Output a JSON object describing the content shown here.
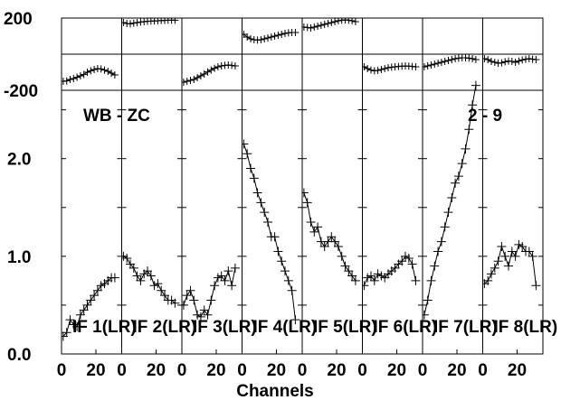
{
  "chart_data": {
    "type": "line",
    "xlabel": "Channels",
    "annotations": {
      "left": "WB - ZC",
      "right": "2 - 9"
    },
    "x_ticks": [
      "0",
      "20"
    ],
    "phase_axis": {
      "ylim": [
        -200,
        200
      ],
      "tick_labels": [
        "200",
        "-200"
      ]
    },
    "amp_axis": {
      "ylim": [
        0.0,
        2.7
      ],
      "tick_labels": [
        "2.0",
        "1.0",
        "0.0"
      ]
    },
    "x": [
      1,
      3,
      5,
      7,
      9,
      11,
      13,
      15,
      17,
      19,
      21,
      23,
      25,
      27,
      29,
      31
    ],
    "panels": [
      {
        "label": "IF 1(LR)",
        "phase": [
          -150,
          -148,
          -140,
          -135,
          -128,
          -120,
          -112,
          -100,
          -92,
          -85,
          -80,
          -82,
          -88,
          -95,
          -105,
          -115
        ],
        "amp": [
          0.18,
          0.22,
          0.35,
          0.3,
          0.28,
          0.4,
          0.45,
          0.5,
          0.55,
          0.6,
          0.65,
          0.7,
          0.72,
          0.75,
          0.78,
          0.78
        ]
      },
      {
        "label": "IF 2(LR)",
        "phase": [
          175,
          170,
          168,
          172,
          175,
          178,
          180,
          182,
          183,
          184,
          185,
          186,
          187,
          188,
          188,
          188
        ],
        "amp": [
          1.0,
          0.98,
          0.92,
          0.88,
          0.8,
          0.75,
          0.82,
          0.85,
          0.8,
          0.7,
          0.72,
          0.65,
          0.6,
          0.55,
          0.55,
          0.52
        ]
      },
      {
        "label": "IF 3(LR)",
        "phase": [
          -155,
          -150,
          -145,
          -140,
          -130,
          -120,
          -110,
          -98,
          -88,
          -78,
          -70,
          -65,
          -62,
          -60,
          -62,
          -65
        ],
        "amp": [
          0.5,
          0.6,
          0.65,
          0.55,
          0.4,
          0.38,
          0.45,
          0.4,
          0.55,
          0.7,
          0.78,
          0.8,
          0.75,
          0.85,
          0.7,
          0.88
        ]
      },
      {
        "label": "IF 4(LR)",
        "phase": [
          110,
          95,
          85,
          80,
          78,
          80,
          85,
          90,
          95,
          100,
          105,
          110,
          115,
          118,
          120,
          120
        ],
        "amp": [
          2.15,
          2.05,
          1.9,
          1.8,
          1.65,
          1.55,
          1.45,
          1.35,
          1.2,
          1.2,
          1.05,
          0.95,
          0.85,
          0.75,
          0.65,
          0.35
        ]
      },
      {
        "label": "IF 5(LR)",
        "phase": [
          150,
          148,
          145,
          150,
          155,
          160,
          165,
          170,
          175,
          180,
          185,
          188,
          190,
          188,
          185,
          180
        ],
        "amp": [
          1.65,
          1.55,
          1.35,
          1.25,
          1.3,
          1.15,
          1.1,
          1.15,
          1.2,
          1.15,
          1.1,
          1.0,
          0.9,
          0.85,
          0.8,
          0.75
        ]
      },
      {
        "label": "IF 6(LR)",
        "phase": [
          -70,
          -80,
          -88,
          -92,
          -90,
          -85,
          -80,
          -75,
          -72,
          -70,
          -68,
          -66,
          -65,
          -66,
          -68,
          -70
        ],
        "amp": [
          0.7,
          0.78,
          0.8,
          0.75,
          0.82,
          0.8,
          0.78,
          0.82,
          0.85,
          0.88,
          0.92,
          0.95,
          1.0,
          0.98,
          0.92,
          0.75
        ]
      },
      {
        "label": "IF 7(LR)",
        "phase": [
          -70,
          -65,
          -60,
          -55,
          -50,
          -45,
          -40,
          -35,
          -30,
          -25,
          -22,
          -20,
          -20,
          -22,
          -25,
          -30
        ],
        "amp": [
          0.4,
          0.55,
          0.75,
          0.9,
          1.05,
          1.15,
          1.3,
          1.45,
          1.6,
          1.75,
          1.82,
          1.95,
          2.1,
          2.3,
          2.55,
          2.75
        ]
      },
      {
        "label": "IF 8(LR)",
        "phase": [
          -25,
          -30,
          -40,
          -45,
          -50,
          -48,
          -42,
          -38,
          -40,
          -45,
          -38,
          -32,
          -28,
          -25,
          -28,
          -30
        ],
        "amp": [
          0.72,
          0.75,
          0.82,
          0.88,
          0.95,
          1.1,
          1.0,
          0.9,
          1.05,
          1.0,
          1.12,
          1.1,
          1.05,
          1.05,
          1.0,
          0.7
        ]
      }
    ]
  }
}
